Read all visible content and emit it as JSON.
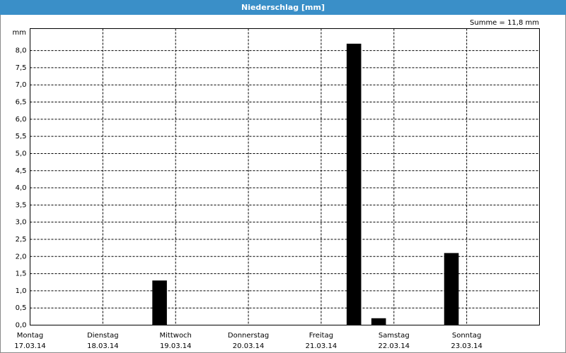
{
  "chart_data": {
    "type": "bar",
    "title": "Niederschlag [mm]",
    "summary": "Summe = 11,8 mm",
    "y_label": "mm",
    "x": [
      1.78,
      4.45,
      4.79,
      5.79
    ],
    "values": [
      1.3,
      8.2,
      0.2,
      2.1
    ],
    "color": "#000000",
    "xlim": [
      0,
      7
    ],
    "xticks": [
      {
        "value": 0,
        "label": "Montag"
      },
      {
        "value": 1,
        "label": "Dienstag"
      },
      {
        "value": 2,
        "label": "Mittwoch"
      },
      {
        "value": 3,
        "label": "Donnerstag"
      },
      {
        "value": 4,
        "label": "Freitag"
      },
      {
        "value": 5,
        "label": "Samstag"
      },
      {
        "value": 6,
        "label": "Sonntag"
      }
    ],
    "xtick_dates": [
      "17.03.14",
      "18.03.14",
      "19.03.14",
      "20.03.14",
      "21.03.14",
      "22.03.14",
      "23.03.14"
    ],
    "ylim": [
      0,
      8.64
    ],
    "yticks": [
      {
        "value": 0,
        "label": "0,0"
      },
      {
        "value": 0.5,
        "label": "0,5"
      },
      {
        "value": 1,
        "label": "1,0"
      },
      {
        "value": 1.5,
        "label": "1,5"
      },
      {
        "value": 2,
        "label": "2,0"
      },
      {
        "value": 2.5,
        "label": "2,5"
      },
      {
        "value": 3,
        "label": "3,0"
      },
      {
        "value": 3.5,
        "label": "3,5"
      },
      {
        "value": 4,
        "label": "4,0"
      },
      {
        "value": 4.5,
        "label": "4,5"
      },
      {
        "value": 5,
        "label": "5,0"
      },
      {
        "value": 5.5,
        "label": "5,5"
      },
      {
        "value": 6,
        "label": "6,0"
      },
      {
        "value": 6.5,
        "label": "6,5"
      },
      {
        "value": 7,
        "label": "7,0"
      },
      {
        "value": 7.5,
        "label": "7,5"
      },
      {
        "value": 8,
        "label": "8,0"
      }
    ],
    "grid": true
  }
}
